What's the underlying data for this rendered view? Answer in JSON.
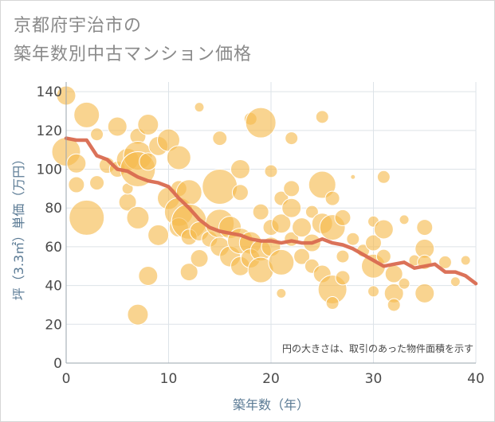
{
  "title_line1": "京都府宇治市の",
  "title_line2": "築年数別中古マンション価格",
  "chart_data": {
    "type": "scatter",
    "title": "京都府宇治市の築年数別中古マンション価格",
    "xlabel": "築年数（年）",
    "ylabel": "坪（3.3㎡）単価（万円）",
    "xlim": [
      0,
      40
    ],
    "ylim": [
      0,
      145
    ],
    "xticks": [
      "0",
      "10",
      "20",
      "30",
      "40"
    ],
    "yticks": [
      "0",
      "20",
      "40",
      "60",
      "80",
      "100",
      "120",
      "140"
    ],
    "grid": true,
    "note": "円の大きさは、取引のあった物件面積を示す",
    "bubble_color": "#f5b94c",
    "line_color": "#d96a50",
    "trend_line": {
      "x": [
        0,
        1,
        2,
        3,
        4,
        5,
        6,
        7,
        8,
        9,
        10,
        11,
        12,
        13,
        14,
        15,
        16,
        17,
        18,
        19,
        20,
        21,
        22,
        23,
        24,
        25,
        26,
        27,
        28,
        29,
        30,
        31,
        32,
        33,
        34,
        35,
        36,
        37,
        38,
        39,
        40
      ],
      "y": [
        116,
        115,
        115,
        107,
        105,
        100,
        99,
        96,
        94,
        93,
        91,
        85,
        80,
        74,
        70,
        68,
        67,
        66,
        64,
        63,
        63,
        62,
        63,
        62,
        62,
        64,
        62,
        61,
        59,
        56,
        53,
        50,
        51,
        52,
        49,
        50,
        51,
        47,
        47,
        45,
        41
      ]
    },
    "points": [
      {
        "x": 0,
        "y": 138,
        "s": 12
      },
      {
        "x": 0,
        "y": 109,
        "s": 18
      },
      {
        "x": 1,
        "y": 103,
        "s": 12
      },
      {
        "x": 1,
        "y": 92,
        "s": 10
      },
      {
        "x": 2,
        "y": 128,
        "s": 16
      },
      {
        "x": 2,
        "y": 75,
        "s": 22
      },
      {
        "x": 3,
        "y": 118,
        "s": 8
      },
      {
        "x": 3,
        "y": 93,
        "s": 9
      },
      {
        "x": 4,
        "y": 102,
        "s": 10
      },
      {
        "x": 5,
        "y": 122,
        "s": 12
      },
      {
        "x": 5,
        "y": 100,
        "s": 10
      },
      {
        "x": 6,
        "y": 105,
        "s": 14
      },
      {
        "x": 6,
        "y": 83,
        "s": 11
      },
      {
        "x": 6,
        "y": 90,
        "s": 7
      },
      {
        "x": 7,
        "y": 117,
        "s": 10
      },
      {
        "x": 7,
        "y": 107,
        "s": 18
      },
      {
        "x": 7,
        "y": 100,
        "s": 22
      },
      {
        "x": 7,
        "y": 75,
        "s": 14
      },
      {
        "x": 7,
        "y": 25,
        "s": 13
      },
      {
        "x": 8,
        "y": 123,
        "s": 13
      },
      {
        "x": 8,
        "y": 104,
        "s": 11
      },
      {
        "x": 8,
        "y": 45,
        "s": 12
      },
      {
        "x": 9,
        "y": 112,
        "s": 12
      },
      {
        "x": 9,
        "y": 66,
        "s": 13
      },
      {
        "x": 10,
        "y": 115,
        "s": 14
      },
      {
        "x": 10,
        "y": 85,
        "s": 14
      },
      {
        "x": 11,
        "y": 106,
        "s": 15
      },
      {
        "x": 11,
        "y": 90,
        "s": 10
      },
      {
        "x": 11,
        "y": 78,
        "s": 18
      },
      {
        "x": 11,
        "y": 70,
        "s": 12
      },
      {
        "x": 12,
        "y": 88,
        "s": 16
      },
      {
        "x": 12,
        "y": 73,
        "s": 22
      },
      {
        "x": 12,
        "y": 65,
        "s": 10
      },
      {
        "x": 12,
        "y": 47,
        "s": 11
      },
      {
        "x": 13,
        "y": 132,
        "s": 6
      },
      {
        "x": 13,
        "y": 68,
        "s": 12
      },
      {
        "x": 13,
        "y": 54,
        "s": 11
      },
      {
        "x": 14,
        "y": 64,
        "s": 10
      },
      {
        "x": 15,
        "y": 116,
        "s": 9
      },
      {
        "x": 15,
        "y": 91,
        "s": 22
      },
      {
        "x": 15,
        "y": 72,
        "s": 18
      },
      {
        "x": 15,
        "y": 60,
        "s": 12
      },
      {
        "x": 16,
        "y": 70,
        "s": 14
      },
      {
        "x": 16,
        "y": 55,
        "s": 13
      },
      {
        "x": 17,
        "y": 100,
        "s": 12
      },
      {
        "x": 17,
        "y": 88,
        "s": 10
      },
      {
        "x": 17,
        "y": 63,
        "s": 16
      },
      {
        "x": 17,
        "y": 50,
        "s": 12
      },
      {
        "x": 18,
        "y": 126,
        "s": 8
      },
      {
        "x": 18,
        "y": 62,
        "s": 14
      },
      {
        "x": 18,
        "y": 54,
        "s": 12
      },
      {
        "x": 19,
        "y": 124,
        "s": 19
      },
      {
        "x": 19,
        "y": 78,
        "s": 10
      },
      {
        "x": 19,
        "y": 58,
        "s": 13
      },
      {
        "x": 19,
        "y": 48,
        "s": 16
      },
      {
        "x": 20,
        "y": 99,
        "s": 8
      },
      {
        "x": 20,
        "y": 70,
        "s": 10
      },
      {
        "x": 20,
        "y": 60,
        "s": 12
      },
      {
        "x": 21,
        "y": 85,
        "s": 9
      },
      {
        "x": 21,
        "y": 72,
        "s": 12
      },
      {
        "x": 21,
        "y": 52,
        "s": 16
      },
      {
        "x": 21,
        "y": 36,
        "s": 6
      },
      {
        "x": 22,
        "y": 116,
        "s": 8
      },
      {
        "x": 22,
        "y": 90,
        "s": 10
      },
      {
        "x": 22,
        "y": 80,
        "s": 12
      },
      {
        "x": 22,
        "y": 64,
        "s": 9
      },
      {
        "x": 23,
        "y": 70,
        "s": 12
      },
      {
        "x": 23,
        "y": 55,
        "s": 10
      },
      {
        "x": 24,
        "y": 78,
        "s": 8
      },
      {
        "x": 24,
        "y": 62,
        "s": 11
      },
      {
        "x": 24,
        "y": 50,
        "s": 9
      },
      {
        "x": 25,
        "y": 127,
        "s": 8
      },
      {
        "x": 25,
        "y": 92,
        "s": 17
      },
      {
        "x": 25,
        "y": 72,
        "s": 13
      },
      {
        "x": 25,
        "y": 46,
        "s": 11
      },
      {
        "x": 26,
        "y": 85,
        "s": 9
      },
      {
        "x": 26,
        "y": 70,
        "s": 16
      },
      {
        "x": 26,
        "y": 38,
        "s": 18
      },
      {
        "x": 26,
        "y": 31,
        "s": 8
      },
      {
        "x": 27,
        "y": 75,
        "s": 10
      },
      {
        "x": 27,
        "y": 55,
        "s": 8
      },
      {
        "x": 27,
        "y": 44,
        "s": 9
      },
      {
        "x": 28,
        "y": 96,
        "s": 3
      },
      {
        "x": 28,
        "y": 64,
        "s": 8
      },
      {
        "x": 29,
        "y": 58,
        "s": 8
      },
      {
        "x": 30,
        "y": 73,
        "s": 7
      },
      {
        "x": 30,
        "y": 62,
        "s": 10
      },
      {
        "x": 30,
        "y": 50,
        "s": 15
      },
      {
        "x": 30,
        "y": 37,
        "s": 7
      },
      {
        "x": 31,
        "y": 96,
        "s": 8
      },
      {
        "x": 31,
        "y": 69,
        "s": 12
      },
      {
        "x": 31,
        "y": 55,
        "s": 9
      },
      {
        "x": 32,
        "y": 46,
        "s": 11
      },
      {
        "x": 32,
        "y": 36,
        "s": 12
      },
      {
        "x": 32,
        "y": 30,
        "s": 8
      },
      {
        "x": 33,
        "y": 74,
        "s": 6
      },
      {
        "x": 33,
        "y": 41,
        "s": 7
      },
      {
        "x": 34,
        "y": 53,
        "s": 7
      },
      {
        "x": 35,
        "y": 70,
        "s": 10
      },
      {
        "x": 35,
        "y": 59,
        "s": 12
      },
      {
        "x": 35,
        "y": 52,
        "s": 9
      },
      {
        "x": 35,
        "y": 36,
        "s": 12
      },
      {
        "x": 37,
        "y": 52,
        "s": 8
      },
      {
        "x": 38,
        "y": 42,
        "s": 6
      },
      {
        "x": 39,
        "y": 53,
        "s": 6
      }
    ]
  }
}
